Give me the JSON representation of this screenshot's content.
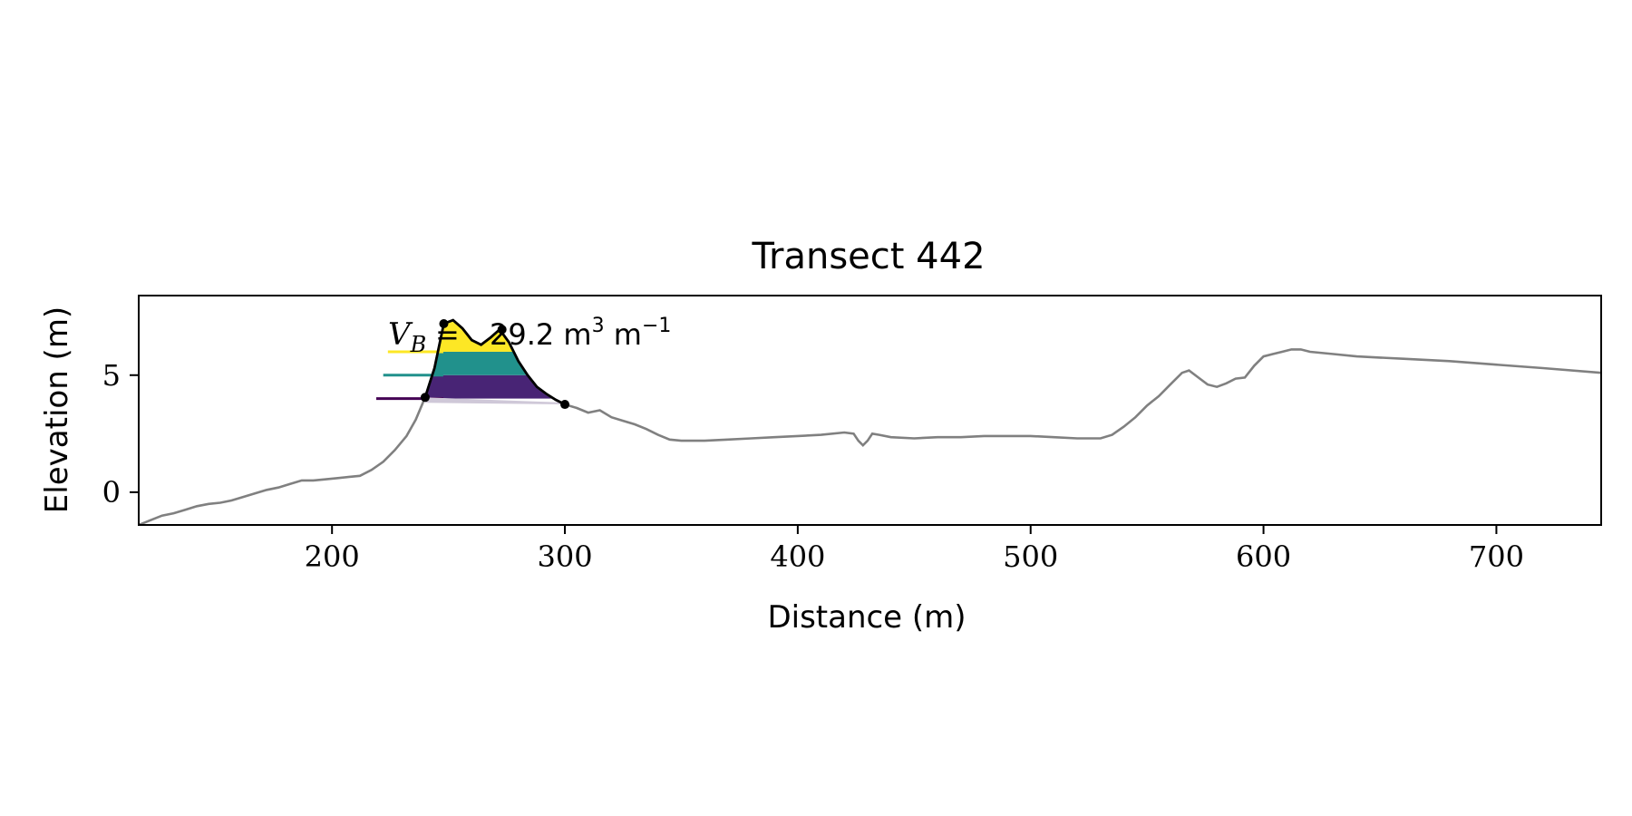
{
  "chart_data": {
    "type": "line",
    "title": "Transect 442",
    "xlabel": "Distance (m)",
    "ylabel": "Elevation (m)",
    "xlim": [
      117,
      745
    ],
    "ylim": [
      -1.4,
      8.4
    ],
    "xticks": [
      200,
      300,
      400,
      500,
      600,
      700
    ],
    "yticks": [
      0,
      5
    ],
    "grid": false,
    "profile": {
      "color": "#808080",
      "x": [
        117,
        122,
        127,
        132,
        137,
        142,
        147,
        152,
        157,
        162,
        167,
        172,
        177,
        182,
        187,
        192,
        197,
        202,
        207,
        212,
        217,
        222,
        227,
        232,
        236,
        240,
        244,
        248,
        252,
        256,
        260,
        264,
        268,
        272,
        276,
        280,
        284,
        288,
        292,
        296,
        300,
        305,
        310,
        315,
        320,
        325,
        330,
        335,
        340,
        345,
        350,
        360,
        370,
        380,
        390,
        400,
        410,
        420,
        424,
        426,
        428,
        430,
        432,
        435,
        440,
        450,
        460,
        470,
        480,
        490,
        500,
        510,
        520,
        530,
        535,
        540,
        545,
        550,
        555,
        560,
        565,
        568,
        572,
        576,
        580,
        584,
        588,
        592,
        596,
        600,
        604,
        608,
        612,
        616,
        620,
        630,
        640,
        650,
        660,
        680,
        700,
        720,
        745
      ],
      "y": [
        -1.4,
        -1.2,
        -1.0,
        -0.9,
        -0.75,
        -0.6,
        -0.5,
        -0.45,
        -0.35,
        -0.2,
        -0.05,
        0.1,
        0.2,
        0.35,
        0.5,
        0.5,
        0.55,
        0.6,
        0.65,
        0.7,
        0.95,
        1.3,
        1.8,
        2.4,
        3.1,
        4.05,
        5.3,
        7.2,
        7.35,
        7.0,
        6.5,
        6.3,
        6.6,
        6.95,
        6.4,
        5.6,
        5.0,
        4.5,
        4.2,
        3.95,
        3.75,
        3.6,
        3.4,
        3.5,
        3.2,
        3.05,
        2.9,
        2.7,
        2.45,
        2.25,
        2.2,
        2.2,
        2.25,
        2.3,
        2.35,
        2.4,
        2.45,
        2.55,
        2.5,
        2.2,
        2.0,
        2.2,
        2.5,
        2.45,
        2.35,
        2.3,
        2.35,
        2.35,
        2.4,
        2.4,
        2.4,
        2.35,
        2.3,
        2.3,
        2.45,
        2.8,
        3.2,
        3.7,
        4.1,
        4.6,
        5.1,
        5.2,
        4.9,
        4.6,
        4.5,
        4.65,
        4.85,
        4.9,
        5.4,
        5.8,
        5.9,
        6.0,
        6.1,
        6.1,
        6.0,
        5.9,
        5.8,
        5.75,
        5.7,
        5.6,
        5.45,
        5.3,
        5.1
      ]
    },
    "dune": {
      "outline_x": [
        240,
        244,
        248,
        252,
        256,
        260,
        264,
        268,
        272,
        276,
        280,
        284,
        288,
        292,
        296,
        300
      ],
      "outline_y": [
        4.05,
        5.3,
        7.2,
        7.35,
        7.0,
        6.5,
        6.3,
        6.6,
        6.95,
        6.4,
        5.6,
        5.0,
        4.5,
        4.2,
        3.95,
        3.75
      ],
      "base_x": [
        240,
        300
      ],
      "base_y": [
        4.05,
        3.75
      ],
      "points": [
        {
          "x": 240,
          "y": 4.05
        },
        {
          "x": 248,
          "y": 7.2
        },
        {
          "x": 273,
          "y": 6.95
        },
        {
          "x": 300,
          "y": 3.75
        }
      ],
      "bands": [
        {
          "from": 4.0,
          "to": 5.0,
          "color": "#482475"
        },
        {
          "from": 5.0,
          "to": 6.0,
          "color": "#21918c"
        },
        {
          "from": 6.0,
          "to": 8.0,
          "color": "#fde725"
        }
      ],
      "levels": [
        {
          "y": 4.0,
          "x_start": 219,
          "color": "#440154"
        },
        {
          "y": 5.0,
          "x_start": 222,
          "color": "#21918c"
        },
        {
          "y": 6.0,
          "x_start": 224,
          "color": "#fde725"
        }
      ]
    },
    "annotation": {
      "symbol": "V",
      "subscript": "B",
      "equals": "=",
      "value": "29.2",
      "unit_m": "m",
      "exp_3": "3",
      "unit_m2": "m",
      "exp_neg1": "−1"
    }
  }
}
